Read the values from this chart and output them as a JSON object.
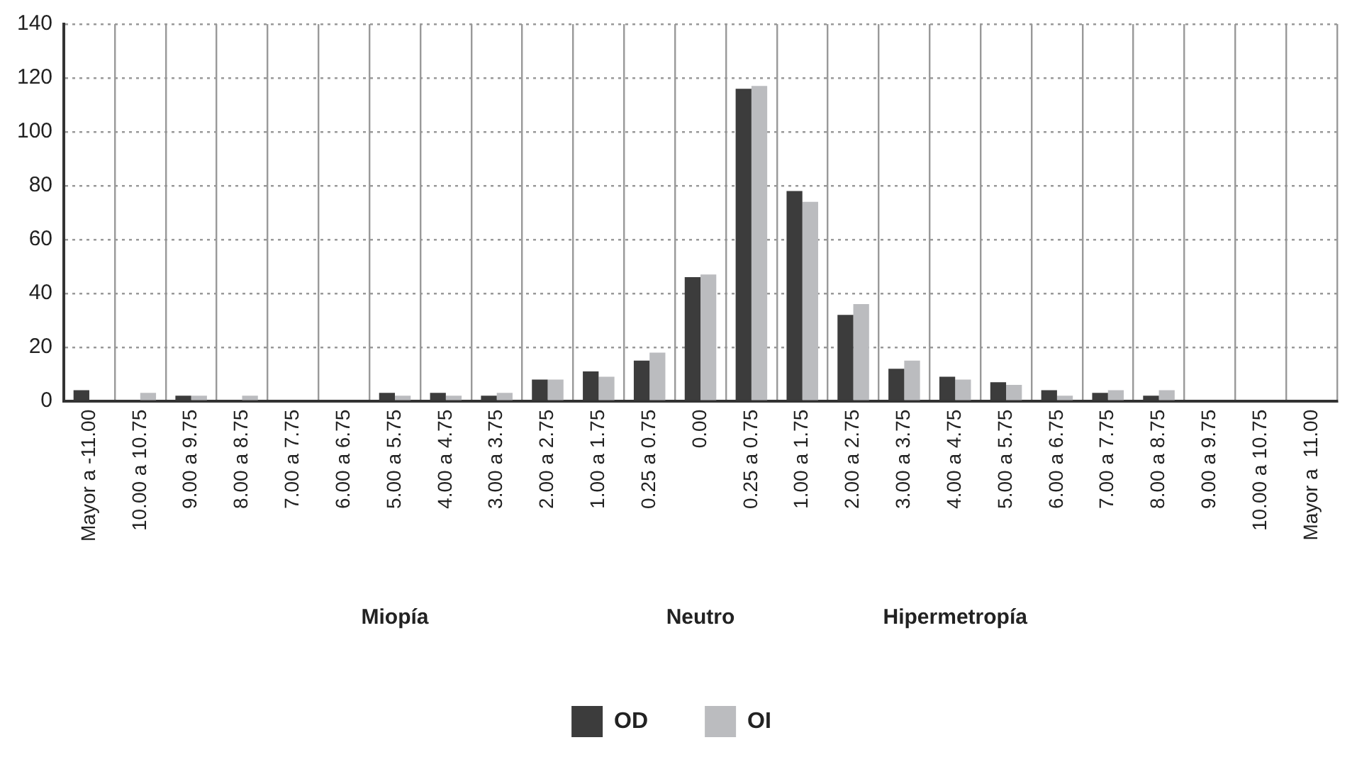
{
  "chart_data": {
    "type": "bar",
    "categories": [
      "Mayor a -11.00",
      "10.00 a 10.75",
      "9.00 a 9.75",
      "8.00 a 8.75",
      "7.00 a 7.75",
      "6.00 a 6.75",
      "5.00 a 5.75",
      "4.00 a 4.75",
      "3.00 a 3.75",
      "2.00 a 2.75",
      "1.00 a 1.75",
      "0.25 a 0.75",
      "0.00",
      "0.25 a 0.75",
      "1.00 a 1.75",
      "2.00 a 2.75",
      "3.00 a 3.75",
      "4.00 a 4.75",
      "5.00 a 5.75",
      "6.00 a 6.75",
      "7.00 a 7.75",
      "8.00 a 8.75",
      "9.00 a 9.75",
      "10.00 a 10.75",
      "Mayor a  11.00"
    ],
    "series": [
      {
        "name": "OD",
        "color": "#3c3c3c",
        "values": [
          4,
          0,
          2,
          0,
          0,
          0,
          3,
          3,
          2,
          8,
          11,
          15,
          46,
          116,
          78,
          32,
          12,
          9,
          7,
          4,
          3,
          2,
          0,
          0,
          0
        ]
      },
      {
        "name": "OI",
        "color": "#bbbcbf",
        "values": [
          0,
          3,
          2,
          2,
          0,
          0,
          2,
          2,
          3,
          8,
          9,
          18,
          47,
          117,
          74,
          36,
          15,
          8,
          6,
          2,
          4,
          4,
          0,
          0,
          0
        ]
      }
    ],
    "ylim": [
      0,
      140
    ],
    "yticks": [
      0,
      20,
      40,
      60,
      80,
      100,
      120,
      140
    ],
    "grid": true,
    "legend": "bottom",
    "annotations": [
      "Miopía",
      "Neutro",
      "Hipermetropía"
    ]
  }
}
